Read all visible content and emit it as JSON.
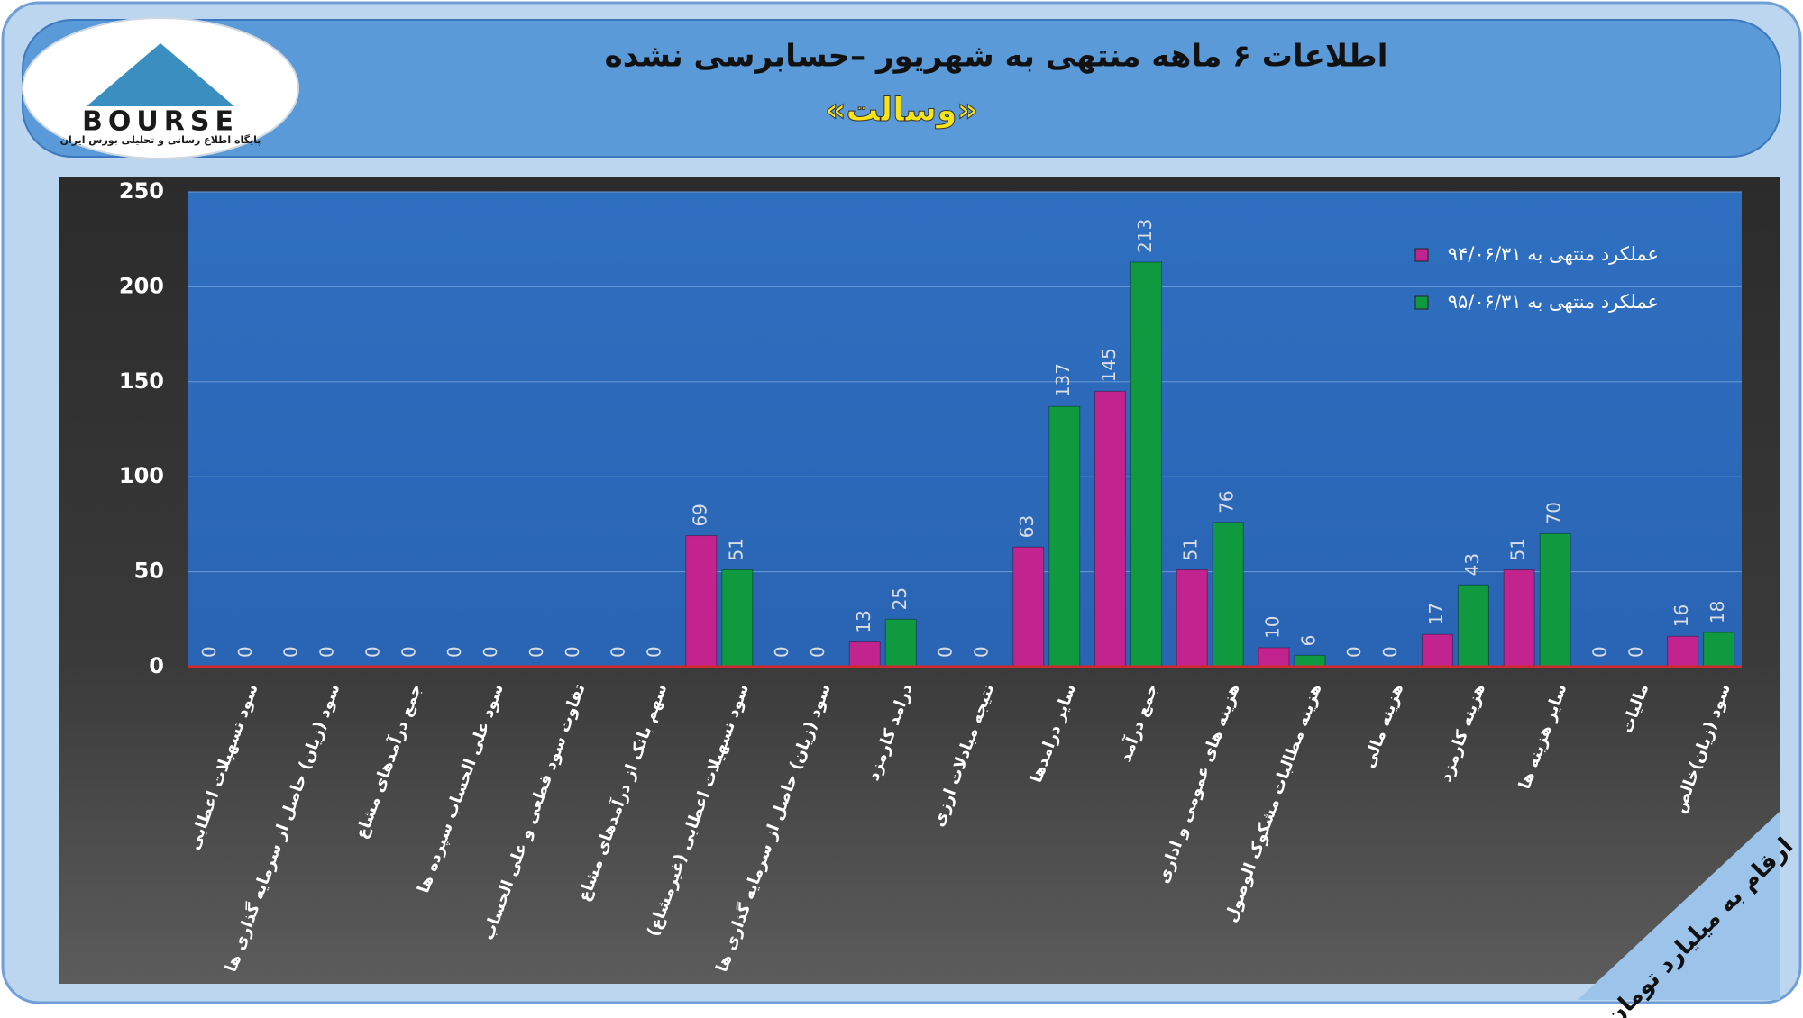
{
  "logo": {
    "text": "BOURSE",
    "tagline": "پایگاه اطلاع رسانی و تحلیلی بورس ایران"
  },
  "note": "ارقام به میلیارد تومان",
  "chart_data": {
    "type": "bar",
    "title": "اطلاعات ۶ ماهه منتهی به شهریور –حسابرسی نشده",
    "subtitle": "«وسالت»",
    "categories": [
      "سود تسهیلات اعطایی",
      "سود (زیان) حاصل از سرمایه گذاری ها",
      "جمع درآمدهای مشاع",
      "سود علی الحساب سپرده ها",
      "تفاوت سود قطعی و علی الحساب",
      "سهم بانک از درآمدهای مشاع",
      "سود تسهیلات اعطایی (غیرمشاع)",
      "سود (زیان) حاصل از سرمایه گذاری ها",
      "درامد کارمزد",
      "نتیجه مبادلات ارزی",
      "سایر درامدها",
      "جمع درآمد",
      "هزینه های عمومی و اداری",
      "هزینه مطالبات مشکوک الوصول",
      "هزینه مالی",
      "هزینه کارمزد",
      "سایر هزینه ها",
      "مالیات",
      "سود (زیان)خالص"
    ],
    "series": [
      {
        "name": "عملکرد منتهی به ۹۴/۰۶/۳۱",
        "color": "#c2238f",
        "values": [
          0,
          0,
          0,
          0,
          0,
          0,
          69,
          0,
          13,
          0,
          63,
          145,
          51,
          10,
          0,
          17,
          51,
          0,
          16
        ]
      },
      {
        "name": "عملکرد منتهی به ۹۵/۰۶/۳۱",
        "color": "#0f9a40",
        "values": [
          0,
          0,
          0,
          0,
          0,
          0,
          51,
          0,
          25,
          0,
          137,
          213,
          76,
          6,
          0,
          43,
          70,
          0,
          18
        ]
      }
    ],
    "ylim": [
      0,
      250
    ],
    "yticks": [
      0,
      50,
      100,
      150,
      200,
      250
    ],
    "grid": true,
    "legend": "top-right"
  }
}
